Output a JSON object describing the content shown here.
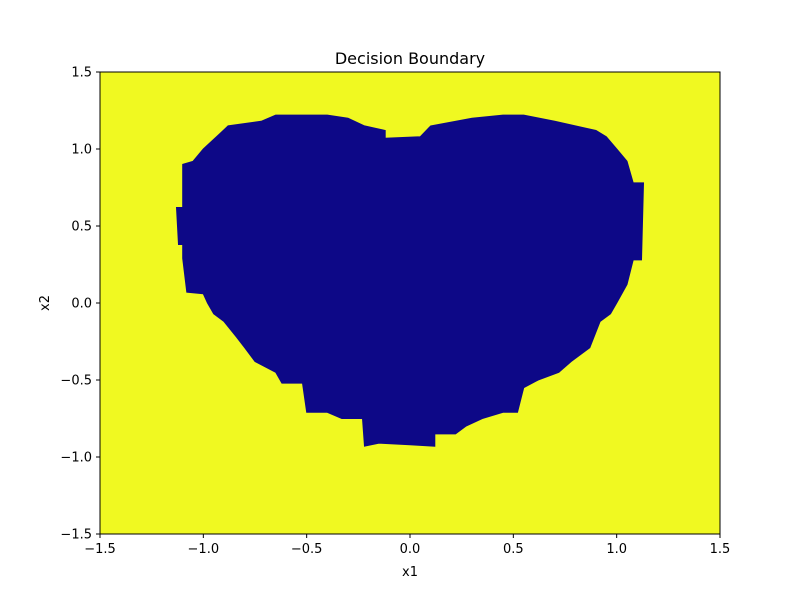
{
  "chart_data": {
    "type": "heatmap",
    "title": "Decision Boundary",
    "xlabel": "x1",
    "ylabel": "x2",
    "xlim": [
      -1.5,
      1.5
    ],
    "ylim": [
      -1.5,
      1.5
    ],
    "x_ticks": [
      -1.5,
      -1.0,
      -0.5,
      0.0,
      0.5,
      1.0,
      1.5
    ],
    "y_ticks": [
      -1.5,
      -1.0,
      -0.5,
      0.0,
      0.5,
      1.0,
      1.5
    ],
    "x_tick_labels": [
      "−1.5",
      "−1.0",
      "−0.5",
      "0.0",
      "0.5",
      "1.0",
      "1.5"
    ],
    "y_tick_labels": [
      "−1.5",
      "−1.0",
      "−0.5",
      "0.0",
      "0.5",
      "1.0",
      "1.5"
    ],
    "grid": false,
    "classes": [
      {
        "class": 0,
        "region": "outside",
        "color": "#f0f921"
      },
      {
        "class": 1,
        "region": "inside",
        "color": "#0d0887"
      }
    ],
    "class1_boundary": [
      [
        -1.13,
        0.62
      ],
      [
        -1.12,
        0.38
      ],
      [
        -1.1,
        0.38
      ],
      [
        -1.1,
        0.29
      ],
      [
        -1.08,
        0.07
      ],
      [
        -1.0,
        0.06
      ],
      [
        -0.98,
        0.0
      ],
      [
        -0.95,
        -0.07
      ],
      [
        -0.9,
        -0.12
      ],
      [
        -0.84,
        -0.22
      ],
      [
        -0.8,
        -0.29
      ],
      [
        -0.75,
        -0.38
      ],
      [
        -0.65,
        -0.45
      ],
      [
        -0.62,
        -0.52
      ],
      [
        -0.52,
        -0.52
      ],
      [
        -0.5,
        -0.71
      ],
      [
        -0.4,
        -0.71
      ],
      [
        -0.33,
        -0.75
      ],
      [
        -0.23,
        -0.75
      ],
      [
        -0.22,
        -0.93
      ],
      [
        -0.15,
        -0.91
      ],
      [
        0.0,
        -0.92
      ],
      [
        0.12,
        -0.93
      ],
      [
        0.12,
        -0.85
      ],
      [
        0.22,
        -0.85
      ],
      [
        0.27,
        -0.8
      ],
      [
        0.35,
        -0.75
      ],
      [
        0.45,
        -0.71
      ],
      [
        0.52,
        -0.71
      ],
      [
        0.55,
        -0.55
      ],
      [
        0.62,
        -0.5
      ],
      [
        0.72,
        -0.45
      ],
      [
        0.78,
        -0.38
      ],
      [
        0.87,
        -0.29
      ],
      [
        0.92,
        -0.12
      ],
      [
        0.97,
        -0.07
      ],
      [
        1.0,
        0.0
      ],
      [
        1.05,
        0.12
      ],
      [
        1.08,
        0.28
      ],
      [
        1.12,
        0.28
      ],
      [
        1.13,
        0.78
      ],
      [
        1.08,
        0.78
      ],
      [
        1.05,
        0.92
      ],
      [
        1.0,
        1.0
      ],
      [
        0.95,
        1.08
      ],
      [
        0.9,
        1.12
      ],
      [
        0.8,
        1.15
      ],
      [
        0.7,
        1.18
      ],
      [
        0.55,
        1.22
      ],
      [
        0.45,
        1.22
      ],
      [
        0.3,
        1.2
      ],
      [
        0.1,
        1.15
      ],
      [
        0.05,
        1.08
      ],
      [
        -0.12,
        1.07
      ],
      [
        -0.12,
        1.12
      ],
      [
        -0.22,
        1.15
      ],
      [
        -0.3,
        1.2
      ],
      [
        -0.4,
        1.22
      ],
      [
        -0.65,
        1.22
      ],
      [
        -0.72,
        1.18
      ],
      [
        -0.88,
        1.15
      ],
      [
        -0.92,
        1.1
      ],
      [
        -1.0,
        1.0
      ],
      [
        -1.05,
        0.92
      ],
      [
        -1.1,
        0.9
      ],
      [
        -1.1,
        0.62
      ]
    ]
  }
}
